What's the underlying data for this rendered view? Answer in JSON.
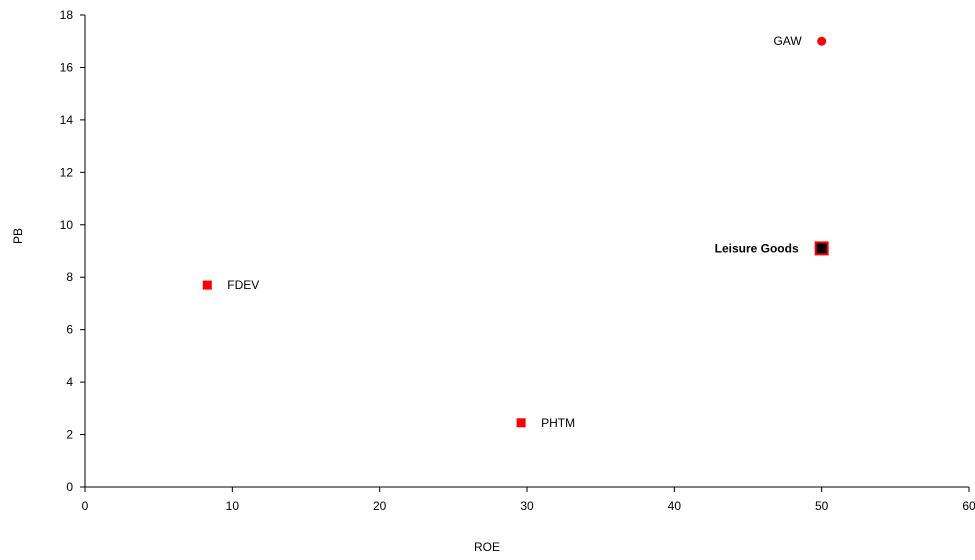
{
  "chart_data": {
    "type": "scatter",
    "xlabel": "ROE",
    "ylabel": "PB",
    "xlim": [
      0,
      60
    ],
    "ylim": [
      0,
      18
    ],
    "xticks": [
      0,
      10,
      20,
      30,
      40,
      50,
      60
    ],
    "yticks": [
      0,
      2,
      4,
      6,
      8,
      10,
      12,
      14,
      16,
      18
    ],
    "grid": false,
    "points": [
      {
        "label": "GAW",
        "x": 50,
        "y": 17.0,
        "marker": "circle",
        "color": "#ff0000",
        "label_side": "left",
        "bold": false
      },
      {
        "label": "Leisure Goods",
        "x": 50,
        "y": 9.1,
        "marker": "square",
        "color": "#000000",
        "edge_color": "#ff0000",
        "label_side": "left",
        "bold": true
      },
      {
        "label": "FDEV",
        "x": 8.3,
        "y": 7.7,
        "marker": "square",
        "color": "#ff0000",
        "label_side": "right",
        "bold": false
      },
      {
        "label": "PHTM",
        "x": 29.6,
        "y": 2.45,
        "marker": "square",
        "color": "#ff0000",
        "label_side": "right",
        "bold": false
      }
    ]
  }
}
